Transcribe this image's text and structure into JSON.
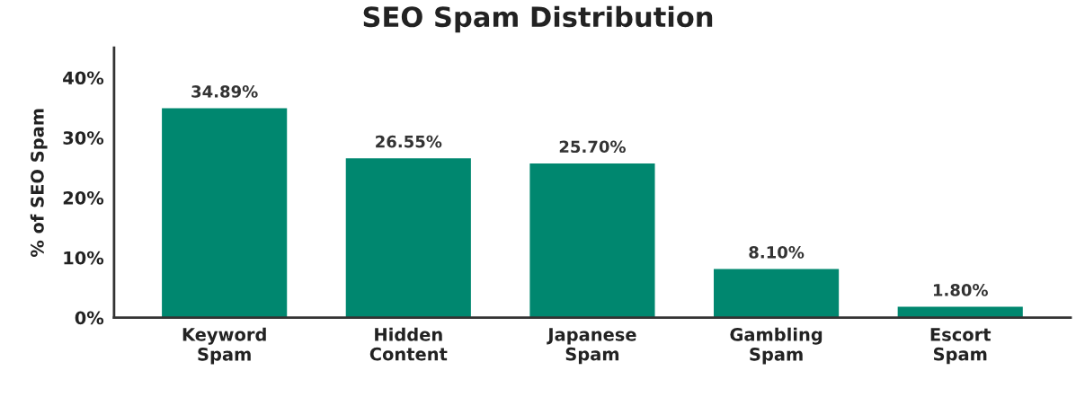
{
  "chart_data": {
    "type": "bar",
    "title": "SEO Spam Distribution",
    "ylabel": "% of SEO Spam",
    "categories": [
      "Keyword\nSpam",
      "Hidden\nContent",
      "Japanese\nSpam",
      "Gambling\nSpam",
      "Escort\nSpam"
    ],
    "values": [
      34.89,
      26.55,
      25.7,
      8.1,
      1.8
    ],
    "value_labels": [
      "34.89%",
      "26.55%",
      "25.70%",
      "8.10%",
      "1.80%"
    ],
    "color": "#00876f",
    "ylim": [
      0,
      45
    ],
    "yticks": [
      {
        "value": 0,
        "label": "0%"
      },
      {
        "value": 10,
        "label": "10%"
      },
      {
        "value": 20,
        "label": "20%"
      },
      {
        "value": 30,
        "label": "30%"
      },
      {
        "value": 40,
        "label": "40%"
      }
    ],
    "grid": false,
    "legend": false
  }
}
